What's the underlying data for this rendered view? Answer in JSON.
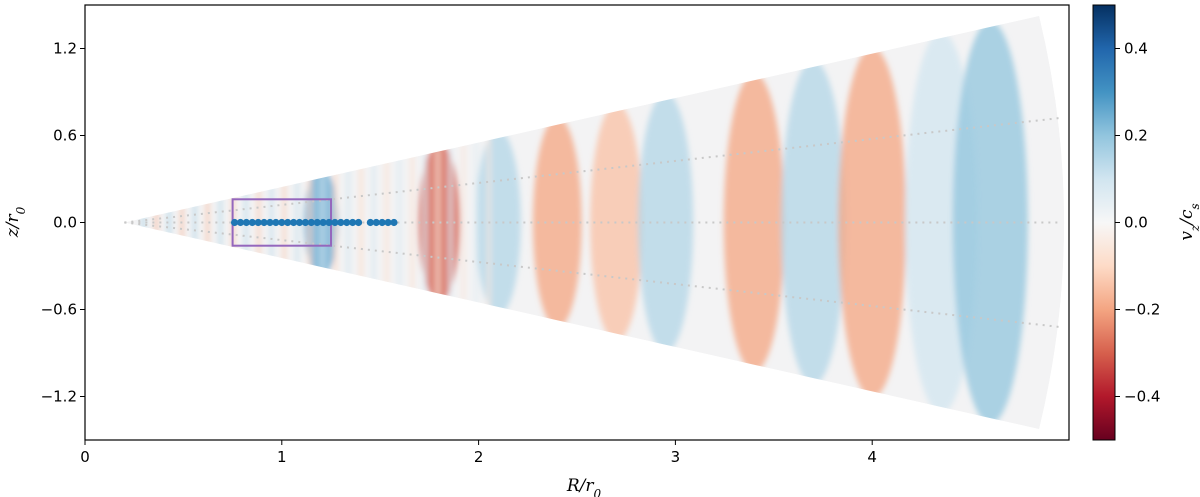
{
  "chart_data": {
    "type": "heatmap",
    "description_quantity": "vertical velocity field of a wedge-shaped disk simulation",
    "xlabel": "R/r₀",
    "ylabel": "z/r₀",
    "xlim": [
      0,
      5.0
    ],
    "ylim": [
      -1.5,
      1.5
    ],
    "xticks": [
      0,
      1,
      2,
      3,
      4
    ],
    "xtick_labels": [
      "0",
      "1",
      "2",
      "3",
      "4"
    ],
    "yticks": [
      1.2,
      0.6,
      0.0,
      -0.6,
      -1.2
    ],
    "ytick_labels": [
      "1.2",
      "0.6",
      "0.0",
      "−0.6",
      "−1.2"
    ],
    "grid": false,
    "domain": {
      "shape": "wedge",
      "apex": [
        0.2,
        0.0
      ],
      "outer_radius": 4.95,
      "upper_edge_slope": 0.3,
      "lower_edge_slope": -0.3
    },
    "dotted_lines": [
      {
        "from": [
          0.2,
          0.0
        ],
        "to": [
          4.95,
          0.72
        ]
      },
      {
        "from": [
          0.2,
          0.0
        ],
        "to": [
          4.95,
          -0.72
        ]
      }
    ],
    "highlight_box": {
      "x": [
        0.75,
        1.25
      ],
      "z": [
        -0.16,
        0.16
      ],
      "color": "#9467bd"
    },
    "points": {
      "color": "#1f77b4",
      "z": 0.0,
      "x": [
        0.76,
        0.79,
        0.82,
        0.85,
        0.88,
        0.91,
        0.94,
        0.97,
        1.0,
        1.03,
        1.06,
        1.09,
        1.12,
        1.15,
        1.18,
        1.21,
        1.24,
        1.27,
        1.3,
        1.33,
        1.36,
        1.39,
        1.45,
        1.48,
        1.51,
        1.54,
        1.57
      ]
    },
    "bands": [
      {
        "R": 1.2,
        "v": 0.25
      },
      {
        "R": 1.8,
        "v": -0.3
      },
      {
        "R": 2.1,
        "v": 0.15
      },
      {
        "R": 2.4,
        "v": -0.2
      },
      {
        "R": 2.7,
        "v": -0.15
      },
      {
        "R": 2.95,
        "v": 0.15
      },
      {
        "R": 3.4,
        "v": -0.2
      },
      {
        "R": 3.7,
        "v": 0.15
      },
      {
        "R": 4.0,
        "v": -0.2
      },
      {
        "R": 4.35,
        "v": 0.1
      },
      {
        "R": 4.6,
        "v": 0.2
      }
    ],
    "colorbar": {
      "label": "v_z/c_s",
      "label_main": "v",
      "label_sub1": "z",
      "label_mid": "/c",
      "label_sub2": "s",
      "range": [
        -0.5,
        0.5
      ],
      "colormap": "RdBu",
      "ticks": [
        0.4,
        0.2,
        0.0,
        -0.2,
        -0.4
      ],
      "tick_labels": [
        "0.4",
        "0.2",
        "0.0",
        "−0.2",
        "−0.4"
      ]
    }
  }
}
